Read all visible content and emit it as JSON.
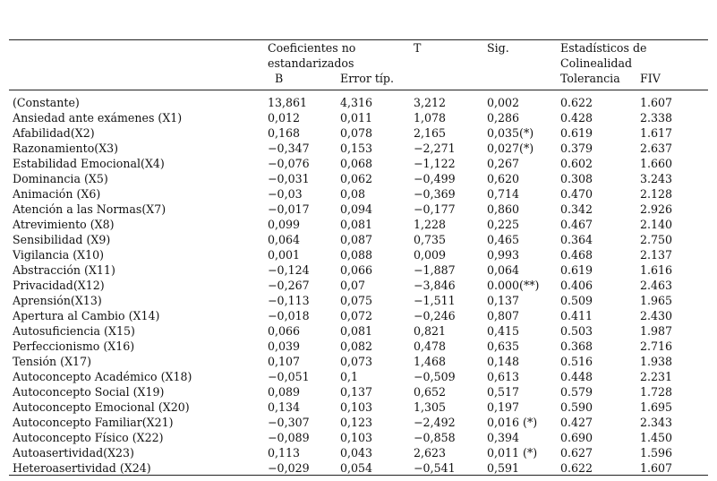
{
  "header": {
    "coef_line1": "Coeficientes no",
    "coef_line2": "estandarizados",
    "b": "B",
    "error": "Error típ.",
    "t": "T",
    "sig": "Sig.",
    "colin_line1": "Estadísticos de",
    "colin_line2": "Colinealidad",
    "tolerancia": "Tolerancia",
    "fiv": "FIV"
  },
  "rows": [
    [
      "(Constante)",
      "13,861",
      "4,316",
      "3,212",
      "0,002",
      "0.622",
      "1.607"
    ],
    [
      "Ansiedad ante exámenes (X1)",
      "0,012",
      "0,011",
      "1,078",
      "0,286",
      "0.428",
      "2.338"
    ],
    [
      "Afabilidad(X2)",
      "0,168",
      "0,078",
      "2,165",
      "0,035(*)",
      "0.619",
      "1.617"
    ],
    [
      "Razonamiento(X3)",
      "−0,347",
      "0,153",
      "−2,271",
      "0,027(*)",
      "0.379",
      "2.637"
    ],
    [
      "Estabilidad Emocional(X4)",
      "−0,076",
      "0,068",
      "−1,122",
      "0,267",
      "0.602",
      "1.660"
    ],
    [
      "Dominancia (X5)",
      "−0,031",
      "0,062",
      "−0,499",
      "0,620",
      "0.308",
      "3.243"
    ],
    [
      "Animación (X6)",
      "−0,03",
      "0,08",
      "−0,369",
      "0,714",
      "0.470",
      "2.128"
    ],
    [
      "Atención a las Normas(X7)",
      "−0,017",
      "0,094",
      "−0,177",
      "0,860",
      "0.342",
      "2.926"
    ],
    [
      "Atrevimiento (X8)",
      "0,099",
      "0,081",
      "1,228",
      "0,225",
      "0.467",
      "2.140"
    ],
    [
      "Sensibilidad (X9)",
      "0,064",
      "0,087",
      "0,735",
      "0,465",
      "0.364",
      "2.750"
    ],
    [
      "Vigilancia (X10)",
      "0,001",
      "0,088",
      "0,009",
      "0,993",
      "0.468",
      "2.137"
    ],
    [
      "Abstracción (X11)",
      "−0,124",
      "0,066",
      "−1,887",
      "0,064",
      "0.619",
      "1.616"
    ],
    [
      "Privacidad(X12)",
      "−0,267",
      "0,07",
      "−3,846",
      "0.000(**)",
      "0.406",
      "2.463"
    ],
    [
      "Aprensión(X13)",
      "−0,113",
      "0,075",
      "−1,511",
      "0,137",
      "0.509",
      "1.965"
    ],
    [
      "Apertura al Cambio (X14)",
      "−0,018",
      "0,072",
      "−0,246",
      "0,807",
      "0.411",
      "2.430"
    ],
    [
      "Autosuficiencia (X15)",
      "0,066",
      "0,081",
      "0,821",
      "0,415",
      "0.503",
      "1.987"
    ],
    [
      "Perfeccionismo (X16)",
      "0,039",
      "0,082",
      "0,478",
      "0,635",
      "0.368",
      "2.716"
    ],
    [
      "Tensión (X17)",
      "0,107",
      "0,073",
      "1,468",
      "0,148",
      "0.516",
      "1.938"
    ],
    [
      "Autoconcepto Académico (X18)",
      "−0,051",
      "0,1",
      "−0,509",
      "0,613",
      "0.448",
      "2.231"
    ],
    [
      "Autoconcepto Social (X19)",
      "0,089",
      "0,137",
      "0,652",
      "0,517",
      "0.579",
      "1.728"
    ],
    [
      "Autoconcepto Emocional (X20)",
      "0,134",
      "0,103",
      "1,305",
      "0,197",
      "0.590",
      "1.695"
    ],
    [
      "Autoconcepto Familiar(X21)",
      "−0,307",
      "0,123",
      "−2,492",
      "0,016 (*)",
      "0.427",
      "2.343"
    ],
    [
      "Autoconcepto Físico (X22)",
      "−0,089",
      "0,103",
      "−0,858",
      "0,394",
      "0.690",
      "1.450"
    ],
    [
      "Autoasertividad(X23)",
      "0,113",
      "0,043",
      "2,623",
      "0,011 (*)",
      "0.627",
      "1.596"
    ],
    [
      "Heteroasertividad (X24)",
      "−0,029",
      "0,054",
      "−0,541",
      "0,591",
      "0.622",
      "1.607"
    ]
  ]
}
